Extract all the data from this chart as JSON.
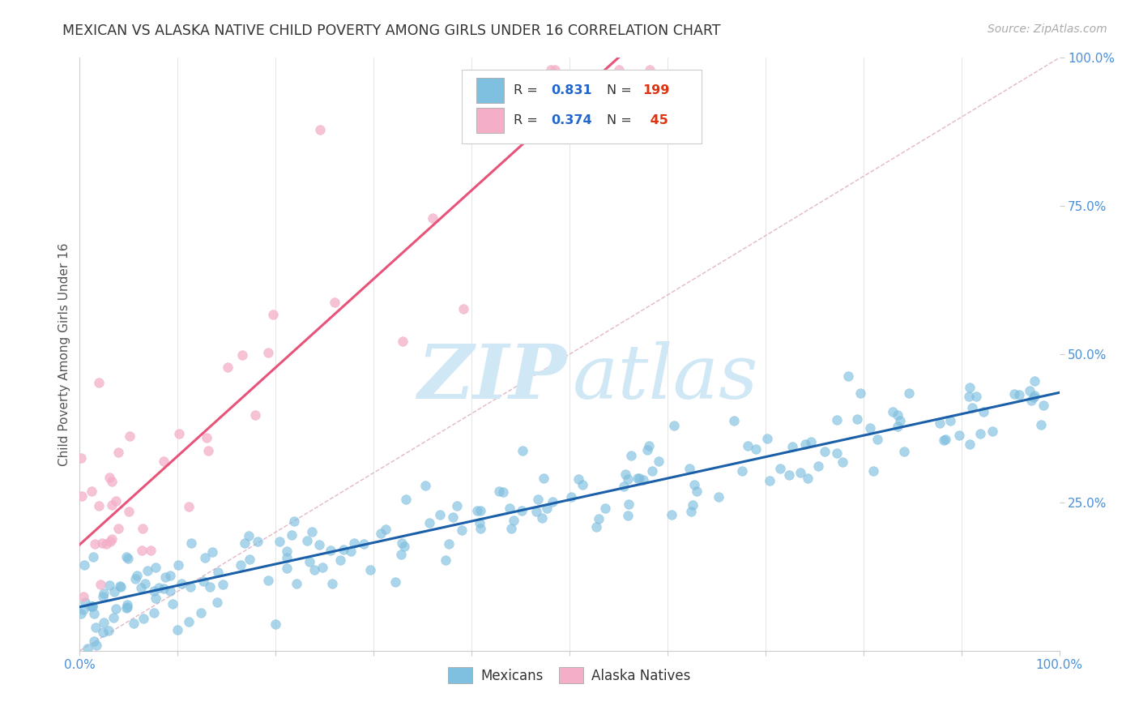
{
  "title": "MEXICAN VS ALASKA NATIVE CHILD POVERTY AMONG GIRLS UNDER 16 CORRELATION CHART",
  "source": "Source: ZipAtlas.com",
  "ylabel": "Child Poverty Among Girls Under 16",
  "xlim": [
    0,
    1
  ],
  "ylim": [
    0,
    1
  ],
  "mexican_color": "#7fbfdf",
  "alaska_color": "#f4aec8",
  "mexican_line_color": "#1a5fa8",
  "alaska_line_color": "#e8537a",
  "diagonal_color": "#e0b0c0",
  "background_color": "#ffffff",
  "grid_color": "#e0e0e0",
  "right_tick_color": "#4a90d9",
  "bottom_tick_color": "#4a90d9",
  "title_color": "#333333",
  "source_color": "#aaaaaa",
  "ylabel_color": "#555555",
  "watermark_zip_color": "#d0e8f5",
  "watermark_atlas_color": "#d0e8f5"
}
